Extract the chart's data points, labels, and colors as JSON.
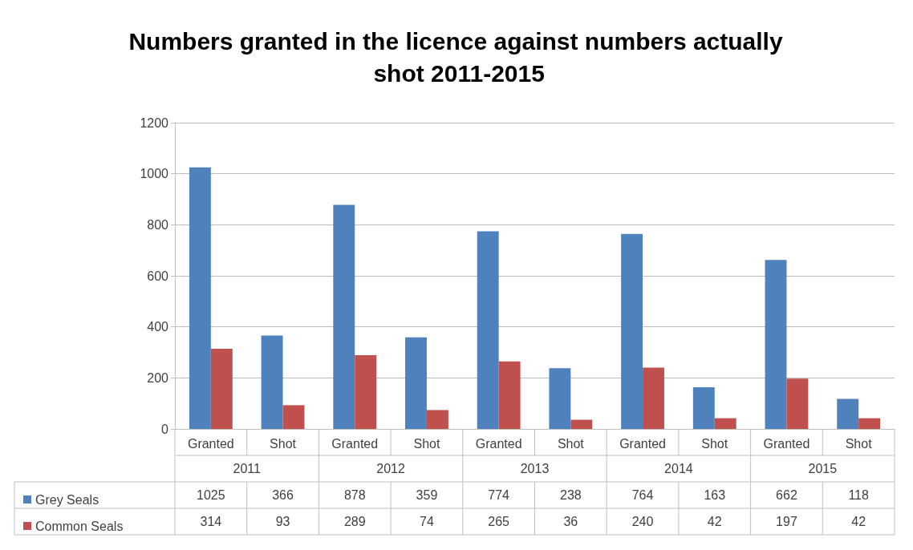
{
  "chart_data": {
    "type": "bar",
    "title": "Numbers granted in the licence against numbers actually shot 2011-2015",
    "categories": [
      "Granted",
      "Shot",
      "Granted",
      "Shot",
      "Granted",
      "Shot",
      "Granted",
      "Shot",
      "Granted",
      "Shot"
    ],
    "annotations": [
      "2011",
      "2012",
      "2013",
      "2014",
      "2015"
    ],
    "series": [
      {
        "name": "Grey Seals",
        "color": "#4f81bd",
        "values": [
          1025,
          366,
          878,
          359,
          774,
          238,
          764,
          163,
          662,
          118
        ]
      },
      {
        "name": "Common Seals",
        "color": "#c0504d",
        "values": [
          314,
          93,
          289,
          74,
          265,
          36,
          240,
          42,
          197,
          42
        ]
      }
    ],
    "ylim": [
      0,
      1200
    ],
    "yticks": [
      0,
      200,
      400,
      600,
      800,
      1000,
      1200
    ],
    "grid": "y",
    "legend": "bottom",
    "data_labels": true
  }
}
